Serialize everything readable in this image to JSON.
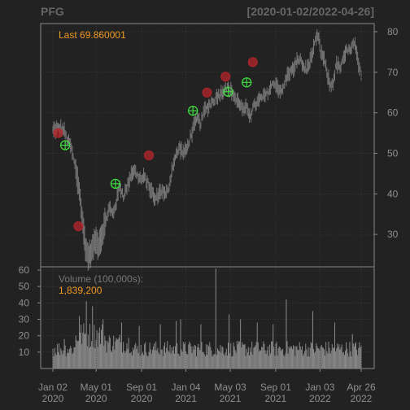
{
  "chart_data": {
    "type": "candlestick",
    "symbol": "PFG",
    "date_range": "[2020-01-02/2022-04-26]",
    "last_label": "Last 69.860001",
    "volume_title": "Volume (100,000s):",
    "volume_value": "1,839,200",
    "price": {
      "ylim": [
        22,
        82
      ],
      "ticks": [
        80,
        70,
        60,
        50,
        40,
        30
      ],
      "series": [
        [
          0,
          55.6
        ],
        [
          6,
          56.2
        ],
        [
          12,
          55.9
        ],
        [
          16,
          53.5
        ],
        [
          20,
          52.0
        ],
        [
          25,
          47.0
        ],
        [
          30,
          41.0
        ],
        [
          34,
          32.5
        ],
        [
          37,
          27.0
        ],
        [
          40,
          24.5
        ],
        [
          44,
          25.8
        ],
        [
          48,
          28.5
        ],
        [
          52,
          27.5
        ],
        [
          56,
          30.0
        ],
        [
          60,
          33.5
        ],
        [
          64,
          36.5
        ],
        [
          68,
          35.0
        ],
        [
          72,
          38.0
        ],
        [
          76,
          42.0
        ],
        [
          80,
          39.5
        ],
        [
          84,
          41.5
        ],
        [
          88,
          44.5
        ],
        [
          92,
          46.0
        ],
        [
          96,
          44.5
        ],
        [
          100,
          43.5
        ],
        [
          104,
          44.0
        ],
        [
          108,
          42.5
        ],
        [
          112,
          40.5
        ],
        [
          116,
          38.5
        ],
        [
          120,
          40.0
        ],
        [
          124,
          41.0
        ],
        [
          128,
          39.5
        ],
        [
          132,
          42.0
        ],
        [
          136,
          47.0
        ],
        [
          140,
          49.5
        ],
        [
          144,
          51.5
        ],
        [
          148,
          50.0
        ],
        [
          152,
          51.0
        ],
        [
          156,
          54.0
        ],
        [
          160,
          56.5
        ],
        [
          164,
          58.5
        ],
        [
          168,
          57.5
        ],
        [
          172,
          60.5
        ],
        [
          176,
          61.5
        ],
        [
          180,
          62.5
        ],
        [
          184,
          63.5
        ],
        [
          188,
          64.5
        ],
        [
          192,
          65.0
        ],
        [
          196,
          66.5
        ],
        [
          200,
          65.5
        ],
        [
          204,
          65.0
        ],
        [
          208,
          63.0
        ],
        [
          212,
          62.5
        ],
        [
          216,
          60.5
        ],
        [
          220,
          61.0
        ],
        [
          224,
          59.5
        ],
        [
          228,
          61.5
        ],
        [
          232,
          62.5
        ],
        [
          236,
          63.5
        ],
        [
          240,
          64.0
        ],
        [
          244,
          65.0
        ],
        [
          248,
          66.5
        ],
        [
          252,
          67.5
        ],
        [
          256,
          66.0
        ],
        [
          260,
          65.0
        ],
        [
          264,
          68.0
        ],
        [
          268,
          70.0
        ],
        [
          272,
          70.5
        ],
        [
          276,
          72.0
        ],
        [
          280,
          73.5
        ],
        [
          284,
          71.5
        ],
        [
          288,
          70.5
        ],
        [
          292,
          73.0
        ],
        [
          296,
          75.5
        ],
        [
          298,
          77.5
        ],
        [
          301,
          79.0
        ],
        [
          304,
          75.0
        ],
        [
          308,
          73.0
        ],
        [
          312,
          69.0
        ],
        [
          315,
          66.5
        ],
        [
          318,
          67.5
        ],
        [
          322,
          72.0
        ],
        [
          326,
          71.0
        ],
        [
          330,
          73.0
        ],
        [
          334,
          76.0
        ],
        [
          338,
          75.0
        ],
        [
          342,
          77.5
        ],
        [
          345,
          74.0
        ],
        [
          348,
          70.5
        ],
        [
          350,
          69.9
        ]
      ],
      "markers_red": [
        [
          6,
          55.0
        ],
        [
          29,
          32.0
        ],
        [
          109,
          49.5
        ],
        [
          175,
          65.0
        ],
        [
          196,
          68.9
        ],
        [
          227,
          72.5
        ]
      ],
      "markers_green": [
        [
          14,
          52.0
        ],
        [
          71,
          42.5
        ],
        [
          159,
          60.5
        ],
        [
          199,
          65.2
        ],
        [
          220,
          67.5
        ]
      ]
    },
    "volume": {
      "ylim": [
        0,
        62
      ],
      "ticks": [
        60,
        50,
        40,
        30,
        20,
        10
      ],
      "spikes": [
        [
          13,
          18
        ],
        [
          30,
          32
        ],
        [
          38,
          41
        ],
        [
          45,
          38
        ],
        [
          57,
          30
        ],
        [
          78,
          28
        ],
        [
          98,
          26
        ],
        [
          122,
          27
        ],
        [
          140,
          29
        ],
        [
          145,
          30
        ],
        [
          168,
          27
        ],
        [
          185,
          61
        ],
        [
          200,
          33
        ],
        [
          213,
          30
        ],
        [
          232,
          28
        ],
        [
          250,
          27
        ],
        [
          265,
          42
        ],
        [
          295,
          35
        ],
        [
          320,
          28
        ],
        [
          340,
          21
        ]
      ]
    },
    "x_ticks": [
      {
        "pos": 0,
        "line1": "Jan 02",
        "line2": "2020"
      },
      {
        "pos": 41,
        "line1": "May 01",
        "line2": "2020"
      },
      {
        "pos": 84,
        "line1": "Sep 01",
        "line2": "2020"
      },
      {
        "pos": 126,
        "line1": "Jan 04",
        "line2": "2021"
      },
      {
        "pos": 168,
        "line1": "May 03",
        "line2": "2021"
      },
      {
        "pos": 211,
        "line1": "Sep 01",
        "line2": "2021"
      },
      {
        "pos": 253,
        "line1": "Jan 03",
        "line2": "2022"
      },
      {
        "pos": 292,
        "line1": "Apr 26",
        "line2": "2022"
      }
    ],
    "x_range": [
      0,
      292
    ],
    "colors": {
      "background": "#222222",
      "panel": "#222222",
      "grid": "#444444",
      "border": "#888888",
      "text": "#8f8f8f",
      "title": "#666666",
      "accent": "#f09a1e",
      "price_line": "#777777",
      "volume_bar": "#8a8a8a",
      "marker_red": "#b5252c",
      "marker_green": "#3fdc3f"
    }
  }
}
